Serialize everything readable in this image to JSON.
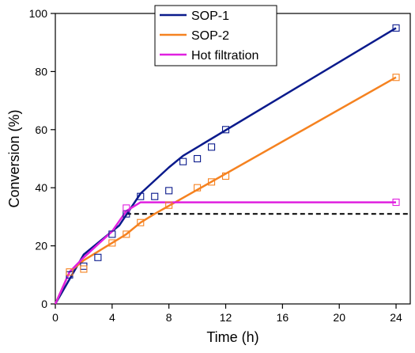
{
  "chart_data": {
    "type": "line",
    "title": "",
    "xlabel": "Time (h)",
    "ylabel": "Conversion (%)",
    "xlim": [
      0,
      25
    ],
    "ylim": [
      0,
      100
    ],
    "x_ticks": [
      0,
      4,
      8,
      12,
      16,
      20,
      24
    ],
    "y_ticks": [
      0,
      20,
      40,
      60,
      80,
      100
    ],
    "grid": false,
    "legend_position": "top-right",
    "series": [
      {
        "name": "SOP-1",
        "color": "#0a1a8c",
        "line": {
          "x": [
            0,
            2,
            4.5,
            6,
            8,
            9,
            24
          ],
          "y": [
            0,
            17,
            27,
            38,
            47,
            51,
            95
          ]
        },
        "points": {
          "x": [
            1,
            2,
            3,
            4,
            5,
            6,
            7,
            8,
            9,
            10,
            11,
            12,
            24
          ],
          "y": [
            10,
            13,
            16,
            24,
            31,
            37,
            37,
            39,
            49,
            50,
            54,
            60,
            95
          ]
        }
      },
      {
        "name": "SOP-2",
        "color": "#f58220",
        "line": {
          "x": [
            0,
            1,
            2,
            4,
            5,
            6,
            7,
            24
          ],
          "y": [
            0,
            11,
            15,
            21,
            24,
            28,
            31,
            78
          ]
        },
        "points": {
          "x": [
            1,
            2,
            4,
            5,
            6,
            8,
            10,
            11,
            12,
            24
          ],
          "y": [
            11,
            12,
            21,
            24,
            28,
            34,
            40,
            42,
            44,
            78
          ]
        }
      },
      {
        "name": "Hot filtration",
        "color": "#e020e0",
        "line": {
          "x": [
            0,
            1,
            2,
            4,
            5,
            6,
            24
          ],
          "y": [
            0,
            11,
            16,
            25,
            32,
            35,
            35
          ]
        },
        "points": {
          "x": [
            5,
            24
          ],
          "y": [
            33,
            35
          ]
        }
      }
    ],
    "reference_line": {
      "y": 31,
      "x_start": 5,
      "x_end": 25,
      "style": "dashed",
      "color": "#000000"
    }
  }
}
